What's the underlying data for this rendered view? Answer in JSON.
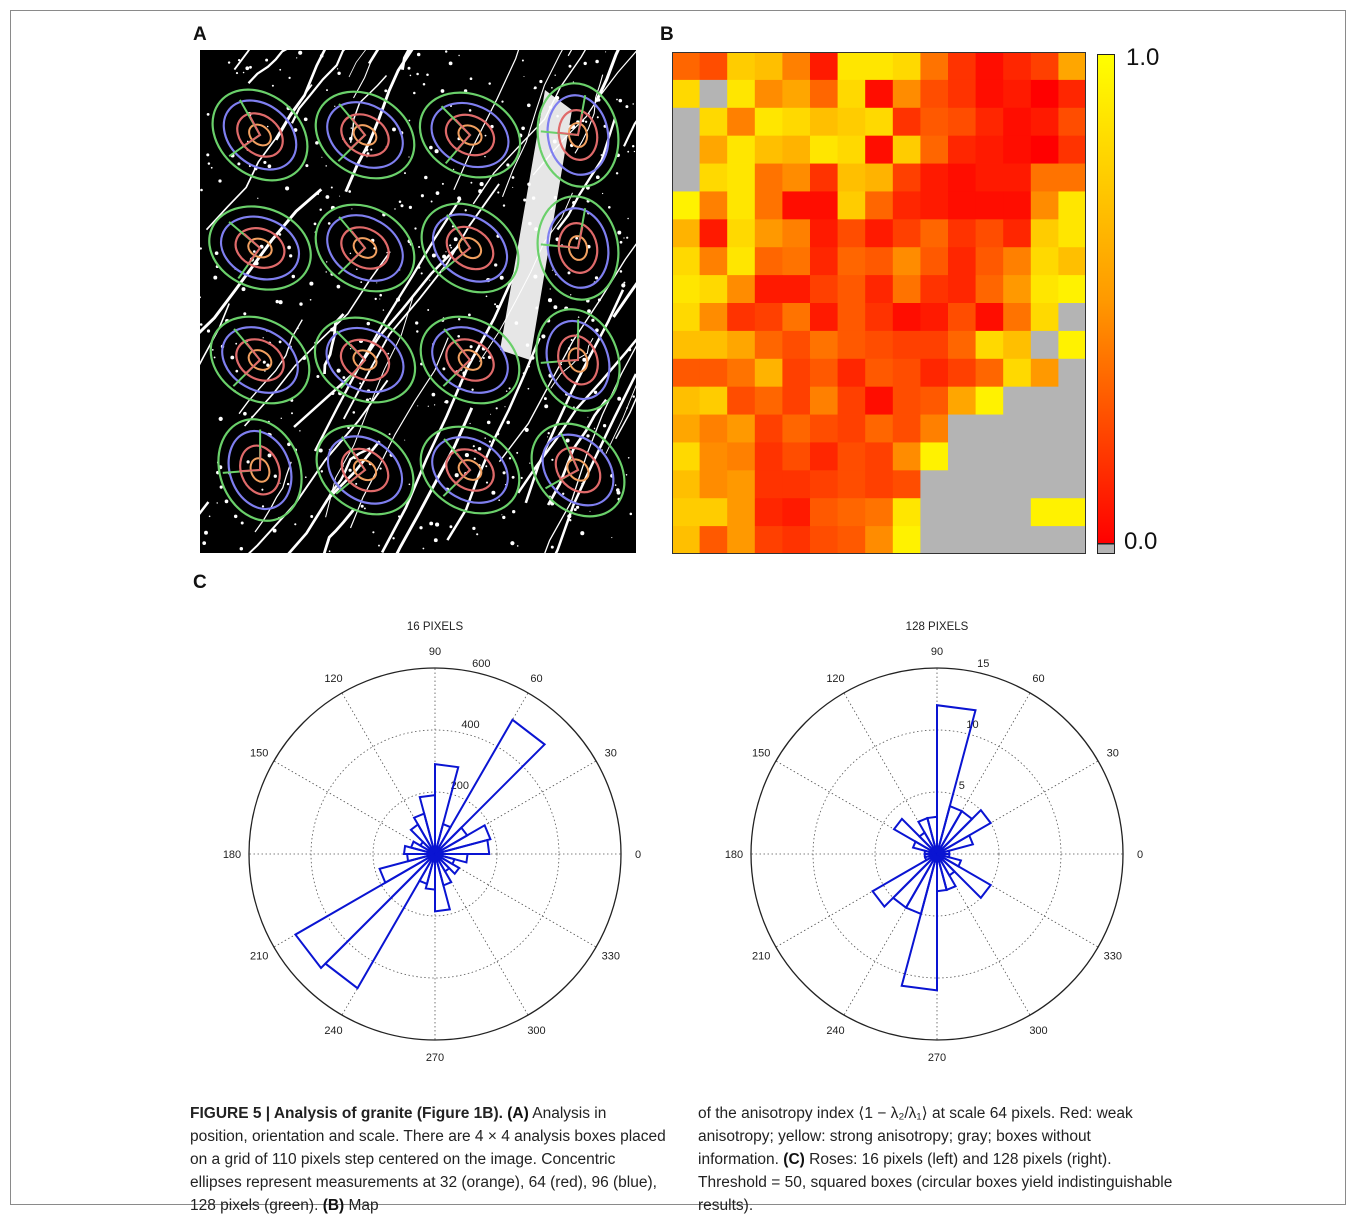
{
  "figure": {
    "label_a": "A",
    "label_b": "B",
    "label_c": "C",
    "colorbar": {
      "max_label": "1.0",
      "min_label": "0.0",
      "colors": [
        "#ffff00",
        "#ffc800",
        "#ff9600",
        "#ff5a00",
        "#ff0000"
      ],
      "gray": "#b4b4b4"
    },
    "ellipse_colors": {
      "orange": "#f2a060",
      "red": "#e06a6a",
      "blue": "#7f7ff0",
      "green": "#6ad06a"
    }
  },
  "chart_data": [
    {
      "type": "heatmap",
      "panel": "B",
      "rows": 18,
      "cols": 15,
      "value_range": [
        0,
        1
      ],
      "null_value": "gray",
      "matrix": [
        [
          0.4,
          0.3,
          0.8,
          0.75,
          0.5,
          0.1,
          0.9,
          0.9,
          0.85,
          0.45,
          0.2,
          0.05,
          0.15,
          0.25,
          0.65
        ],
        [
          0.85,
          null,
          0.9,
          0.55,
          0.65,
          0.4,
          0.85,
          0.05,
          0.55,
          0.3,
          0.2,
          0.05,
          0.1,
          0.0,
          0.15
        ],
        [
          null,
          0.85,
          0.5,
          0.9,
          0.85,
          0.75,
          0.8,
          0.85,
          0.2,
          0.35,
          0.3,
          0.15,
          0.05,
          0.1,
          0.3
        ],
        [
          null,
          0.65,
          0.9,
          0.75,
          0.7,
          0.9,
          0.85,
          0.05,
          0.8,
          0.4,
          0.15,
          0.1,
          0.05,
          0.0,
          0.2
        ],
        [
          null,
          0.85,
          0.9,
          0.45,
          0.55,
          0.2,
          0.75,
          0.7,
          0.25,
          0.1,
          0.05,
          0.1,
          0.1,
          0.45,
          0.45
        ],
        [
          0.95,
          0.5,
          0.9,
          0.45,
          0.05,
          0.05,
          0.8,
          0.4,
          0.15,
          0.1,
          0.05,
          0.05,
          0.05,
          0.55,
          0.9
        ],
        [
          0.7,
          0.1,
          0.85,
          0.6,
          0.5,
          0.1,
          0.3,
          0.1,
          0.25,
          0.4,
          0.2,
          0.3,
          0.15,
          0.8,
          0.9
        ],
        [
          0.85,
          0.5,
          0.9,
          0.4,
          0.45,
          0.15,
          0.4,
          0.35,
          0.55,
          0.35,
          0.15,
          0.35,
          0.5,
          0.85,
          0.75
        ],
        [
          0.9,
          0.85,
          0.55,
          0.1,
          0.1,
          0.25,
          0.35,
          0.15,
          0.45,
          0.2,
          0.15,
          0.4,
          0.6,
          0.9,
          0.95
        ],
        [
          0.85,
          0.55,
          0.2,
          0.25,
          0.45,
          0.1,
          0.35,
          0.2,
          0.05,
          0.1,
          0.3,
          0.05,
          0.45,
          0.85,
          null
        ],
        [
          0.75,
          0.75,
          0.65,
          0.4,
          0.3,
          0.45,
          0.35,
          0.3,
          0.25,
          0.25,
          0.4,
          0.85,
          0.75,
          null,
          0.95
        ],
        [
          0.35,
          0.35,
          0.45,
          0.7,
          0.25,
          0.35,
          0.15,
          0.35,
          0.3,
          0.15,
          0.25,
          0.4,
          0.85,
          0.6,
          null
        ],
        [
          0.75,
          0.8,
          0.3,
          0.4,
          0.25,
          0.5,
          0.25,
          0.05,
          0.3,
          0.35,
          0.65,
          0.95,
          null,
          null,
          null
        ],
        [
          0.65,
          0.5,
          0.6,
          0.25,
          0.4,
          0.3,
          0.25,
          0.4,
          0.3,
          0.5,
          null,
          null,
          null,
          null,
          null
        ],
        [
          0.85,
          0.55,
          0.5,
          0.2,
          0.3,
          0.15,
          0.3,
          0.25,
          0.55,
          0.95,
          null,
          null,
          null,
          null,
          null
        ],
        [
          0.75,
          0.55,
          0.6,
          0.2,
          0.2,
          0.25,
          0.3,
          0.25,
          0.3,
          null,
          null,
          null,
          null,
          null,
          null
        ],
        [
          0.8,
          0.8,
          0.6,
          0.15,
          0.1,
          0.35,
          0.4,
          0.45,
          0.9,
          null,
          null,
          null,
          null,
          0.95,
          0.95
        ],
        [
          0.75,
          0.35,
          0.6,
          0.25,
          0.2,
          0.3,
          0.35,
          0.55,
          0.95,
          null,
          null,
          null,
          null,
          null,
          null
        ]
      ]
    },
    {
      "type": "rose",
      "title": "16 PIXELS",
      "rmax": 600,
      "r_ticks": [
        200,
        400,
        600
      ],
      "angle_ticks": [
        0,
        30,
        60,
        90,
        120,
        150,
        180,
        210,
        240,
        270,
        300,
        330
      ],
      "bin_width_deg": 15,
      "bins_deg": [
        0,
        15,
        30,
        45,
        60,
        75,
        90,
        105,
        120,
        135,
        150,
        165,
        180,
        195,
        210,
        225,
        240,
        255,
        270,
        285,
        300,
        315,
        330,
        345
      ],
      "values": [
        175,
        185,
        120,
        500,
        100,
        290,
        190,
        135,
        110,
        55,
        80,
        100,
        90,
        185,
        520,
        500,
        100,
        115,
        185,
        105,
        65,
        90,
        65,
        105
      ]
    },
    {
      "type": "rose",
      "title": "128 PIXELS",
      "rmax": 15,
      "r_ticks": [
        5,
        10,
        15
      ],
      "angle_ticks": [
        0,
        30,
        60,
        90,
        120,
        150,
        180,
        210,
        240,
        270,
        300,
        330
      ],
      "bin_width_deg": 15,
      "bins_deg": [
        0,
        15,
        30,
        45,
        60,
        75,
        90,
        105,
        120,
        135,
        150,
        165,
        180,
        195,
        210,
        225,
        240,
        255,
        270,
        285,
        300,
        315,
        330,
        345
      ],
      "values": [
        1,
        3,
        5,
        4,
        4,
        12,
        3,
        3,
        2,
        4,
        2,
        1,
        1,
        1,
        6,
        5,
        5,
        11,
        3,
        3,
        2,
        5,
        2,
        1
      ]
    }
  ],
  "caption": {
    "title": "FIGURE 5 | Analysis of granite (Figure 1B).",
    "a_label": "(A)",
    "a_text_1": " Analysis in position, orientation and scale. There are 4 × 4 analysis boxes placed on a grid of 110 pixels step centered on the image. Concentric ellipses represent measurements at 32 (orange), 64 (red), 96 (blue), 128 pixels (green). ",
    "b_label": "(B)",
    "b_text_1": " Map",
    "b_text_2": "of the anisotropy index ⟨1 − λ₂/λ₁⟩ at scale 64 pixels. Red: weak anisotropy; yellow: strong anisotropy; gray; boxes without information. ",
    "c_label": "(C)",
    "c_text": " Roses: 16 pixels (left) and 128 pixels (right). Threshold = 50, squared boxes (circular boxes yield indistinguishable results)."
  }
}
